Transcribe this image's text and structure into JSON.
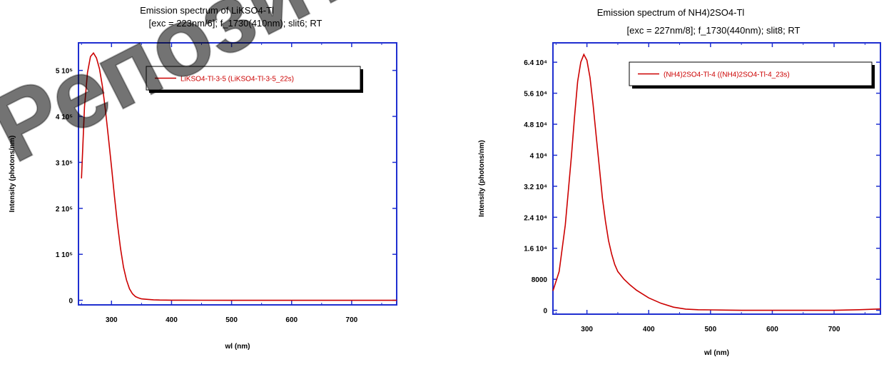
{
  "watermark": {
    "text": "Репозиторий",
    "color": "#000000"
  },
  "chart_data": [
    {
      "type": "line",
      "title": "Emission spectrum of  LiKSO4-Tl",
      "subtitle": "[exc = 223nm/6]; f_1730(410nm); slit6; RT",
      "xlabel": "wl (nm)",
      "ylabel": "Intensity (photons/nm)",
      "xlim": [
        245,
        775
      ],
      "ylim": [
        -10000,
        560000
      ],
      "xticks": [
        300,
        400,
        500,
        600,
        700
      ],
      "xtick_labels": [
        "300",
        "400",
        "500",
        "600",
        "700"
      ],
      "yticks": [
        0,
        100000,
        200000,
        300000,
        400000,
        500000
      ],
      "ytick_labels": [
        "0",
        "1 10⁵",
        "2 10⁵",
        "3 10⁵",
        "4 10⁵",
        "5 10⁵"
      ],
      "grid": false,
      "legend": "top-right",
      "line_color": "#cc0000",
      "series": [
        {
          "name": "LiKSO4-Tl-3-5 (LiKSO4-Tl-3-5_22s)",
          "x": [
            250,
            255,
            260,
            265,
            270,
            275,
            280,
            285,
            290,
            295,
            300,
            305,
            310,
            315,
            320,
            325,
            330,
            335,
            340,
            345,
            350,
            360,
            370,
            380,
            400,
            450,
            500,
            600,
            700,
            775
          ],
          "y": [
            265000,
            420000,
            495000,
            530000,
            538000,
            527000,
            503000,
            464000,
            412000,
            352000,
            290000,
            225000,
            165000,
            113000,
            72000,
            44000,
            25000,
            14000,
            8000,
            5000,
            3000,
            2000,
            1000,
            600,
            300,
            100,
            0,
            0,
            0,
            0
          ]
        }
      ]
    },
    {
      "type": "line",
      "title": "Emission spectrum of  NH4)2SO4-Tl",
      "subtitle": "[exc = 227nm/8]; f_1730(440nm); slit8; RT",
      "xlabel": "wl (nm)",
      "ylabel": "Intensity (photons/nm)",
      "xlim": [
        245,
        775
      ],
      "ylim": [
        -1000,
        69000
      ],
      "xticks": [
        300,
        400,
        500,
        600,
        700
      ],
      "xtick_labels": [
        "300",
        "400",
        "500",
        "600",
        "700"
      ],
      "yticks": [
        0,
        8000,
        16000,
        24000,
        32000,
        40000,
        48000,
        56000,
        64000
      ],
      "ytick_labels": [
        "0",
        "8000",
        "1.6 10⁴",
        "2.4 10⁴",
        "3.2 10⁴",
        "4 10⁴",
        "4.8 10⁴",
        "5.6 10⁴",
        "6.4 10⁴"
      ],
      "grid": false,
      "legend": "top-right",
      "line_color": "#cc0000",
      "series": [
        {
          "name": "(NH4)2SO4-Tl-4 ((NH4)2SO4-Tl-4_23s)",
          "x": [
            245,
            255,
            265,
            275,
            280,
            285,
            290,
            295,
            300,
            305,
            310,
            315,
            320,
            325,
            330,
            335,
            340,
            345,
            350,
            360,
            370,
            380,
            400,
            420,
            440,
            460,
            480,
            500,
            550,
            600,
            650,
            700,
            740,
            760,
            775
          ],
          "y": [
            5000,
            10000,
            22000,
            40000,
            50000,
            59000,
            64000,
            66000,
            64500,
            60000,
            53000,
            45000,
            37000,
            29000,
            23000,
            18000,
            14500,
            11800,
            10000,
            8000,
            6500,
            5200,
            3200,
            1800,
            800,
            300,
            150,
            100,
            0,
            0,
            0,
            0,
            150,
            250,
            350
          ]
        }
      ]
    }
  ]
}
